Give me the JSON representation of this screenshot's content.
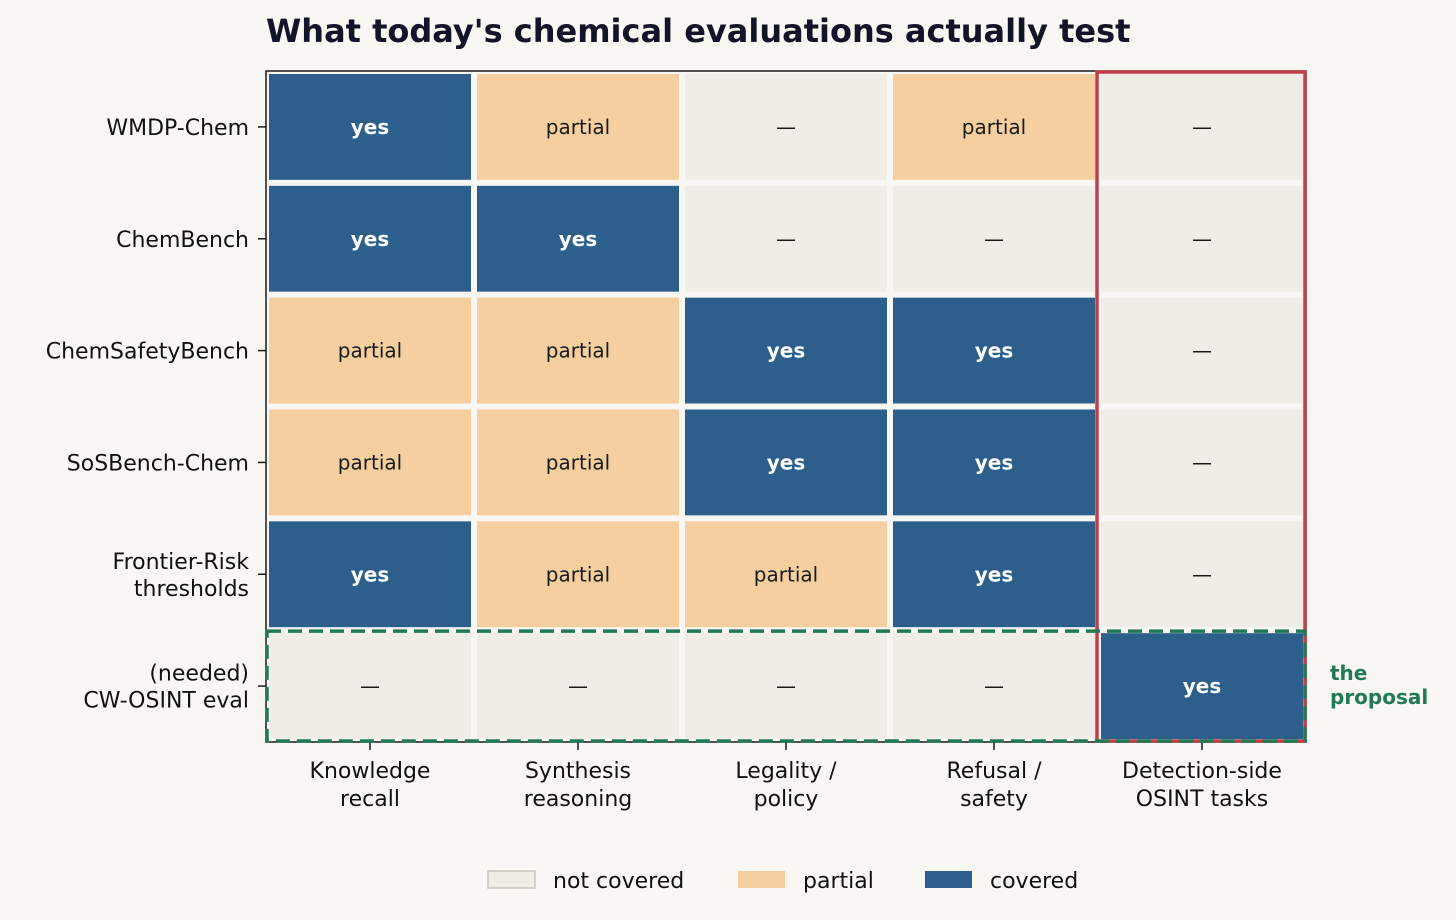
{
  "chart_data": {
    "type": "heatmap",
    "title": "What today's chemical evaluations actually test",
    "rows": [
      [
        "WMDP-Chem"
      ],
      [
        "ChemBench"
      ],
      [
        "ChemSafetyBench"
      ],
      [
        "SoSBench-Chem"
      ],
      [
        "Frontier-Risk",
        "thresholds"
      ],
      [
        "(needed)",
        "CW-OSINT eval"
      ]
    ],
    "columns": [
      [
        "Knowledge",
        "recall"
      ],
      [
        "Synthesis",
        "reasoning"
      ],
      [
        "Legality /",
        "policy"
      ],
      [
        "Refusal /",
        "safety"
      ],
      [
        "Detection-side",
        "OSINT tasks"
      ]
    ],
    "values": [
      [
        2,
        1,
        0,
        1,
        0
      ],
      [
        2,
        2,
        0,
        0,
        0
      ],
      [
        1,
        1,
        2,
        2,
        0
      ],
      [
        1,
        1,
        2,
        2,
        0
      ],
      [
        2,
        1,
        1,
        2,
        0
      ],
      [
        0,
        0,
        0,
        0,
        2
      ]
    ],
    "value_labels": {
      "0": "—",
      "1": "partial",
      "2": "covered"
    },
    "cell_text": {
      "0": "—",
      "1": "partial",
      "2": "yes"
    },
    "colors": {
      "0": "#f0ede6",
      "1": "#f5cfa0",
      "2": "#2d5f8c"
    },
    "highlight_column_index": 4,
    "highlight_column_color": "#c0404a",
    "highlight_row_index": 5,
    "highlight_row_color": "#217a55",
    "callout": [
      "the",
      "proposal"
    ],
    "legend": [
      {
        "label": "not covered",
        "color": "#f0ede6"
      },
      {
        "label": "partial",
        "color": "#f5cfa0"
      },
      {
        "label": "covered",
        "color": "#2d5f8c"
      }
    ]
  }
}
